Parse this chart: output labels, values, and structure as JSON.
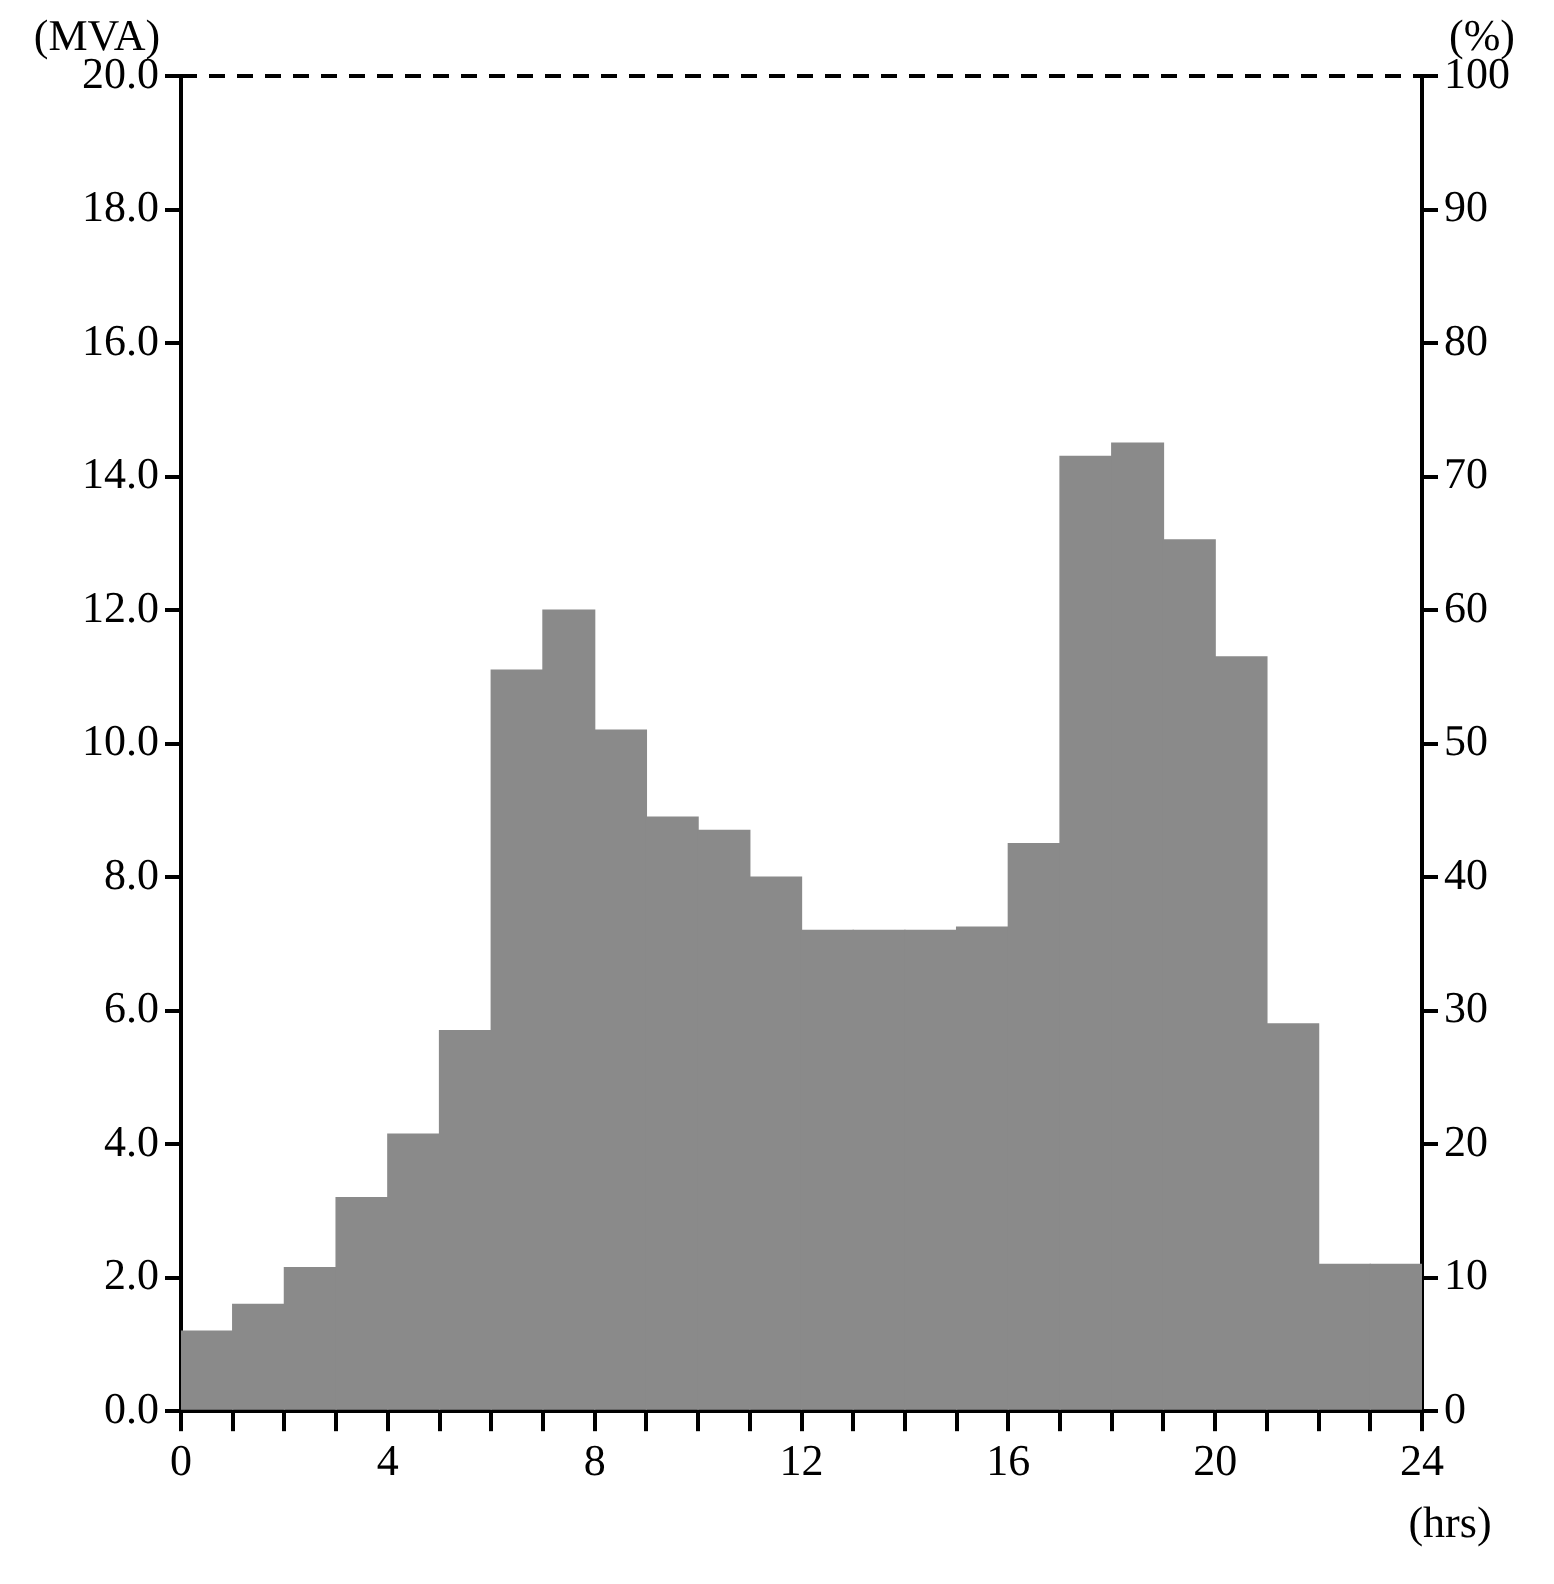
{
  "chart_data": {
    "type": "histogram",
    "ylabel": "(MVA)",
    "y2label": "(%)",
    "xlabel": "(hrs)",
    "bins": [
      0,
      1,
      2,
      3,
      4,
      5,
      6,
      7,
      8,
      9,
      10,
      11,
      12,
      13,
      14,
      15,
      16,
      17,
      18,
      19,
      20,
      21,
      22,
      23,
      24
    ],
    "values": [
      1.2,
      1.6,
      2.15,
      3.2,
      4.15,
      5.7,
      11.1,
      12.0,
      10.2,
      8.9,
      8.7,
      8.0,
      7.2,
      7.2,
      7.2,
      7.25,
      8.5,
      14.3,
      14.5,
      13.05,
      11.3,
      5.8,
      2.2,
      2.2
    ],
    "color": "#8a8a8a",
    "xlim": [
      0,
      24
    ],
    "xticks": [
      0,
      {
        "value": 1,
        "label": null
      },
      {
        "value": 2,
        "label": null
      },
      {
        "value": 3,
        "label": null
      },
      4,
      {
        "value": 5,
        "label": null
      },
      {
        "value": 6,
        "label": null
      },
      {
        "value": 7,
        "label": null
      },
      8,
      {
        "value": 9,
        "label": null
      },
      {
        "value": 10,
        "label": null
      },
      {
        "value": 11,
        "label": null
      },
      12,
      {
        "value": 13,
        "label": null
      },
      {
        "value": 14,
        "label": null
      },
      {
        "value": 15,
        "label": null
      },
      16,
      {
        "value": 17,
        "label": null
      },
      {
        "value": 18,
        "label": null
      },
      {
        "value": 19,
        "label": null
      },
      20,
      {
        "value": 21,
        "label": null
      },
      {
        "value": 22,
        "label": null
      },
      {
        "value": 23,
        "label": null
      },
      24
    ],
    "ylim": [
      0,
      20
    ],
    "yticks": [
      {
        "value": 0,
        "label": "0.0"
      },
      {
        "value": 2,
        "label": "2.0"
      },
      {
        "value": 4,
        "label": "4.0"
      },
      {
        "value": 6,
        "label": "6.0"
      },
      {
        "value": 8,
        "label": "8.0"
      },
      {
        "value": 10,
        "label": "10.0"
      },
      {
        "value": 12,
        "label": "12.0"
      },
      {
        "value": 14,
        "label": "14.0"
      },
      {
        "value": 16,
        "label": "16.0"
      },
      {
        "value": 18,
        "label": "18.0"
      },
      {
        "value": 20,
        "label": "20.0"
      }
    ],
    "y2lim": [
      0,
      100
    ],
    "y2ticks": [
      0,
      10,
      20,
      30,
      40,
      50,
      60,
      70,
      80,
      90,
      100
    ],
    "ref_lines": [
      {
        "axis": "y",
        "value": 20,
        "line_style": "dashed",
        "color": "#000000"
      }
    ],
    "grid": false,
    "legend": false
  }
}
